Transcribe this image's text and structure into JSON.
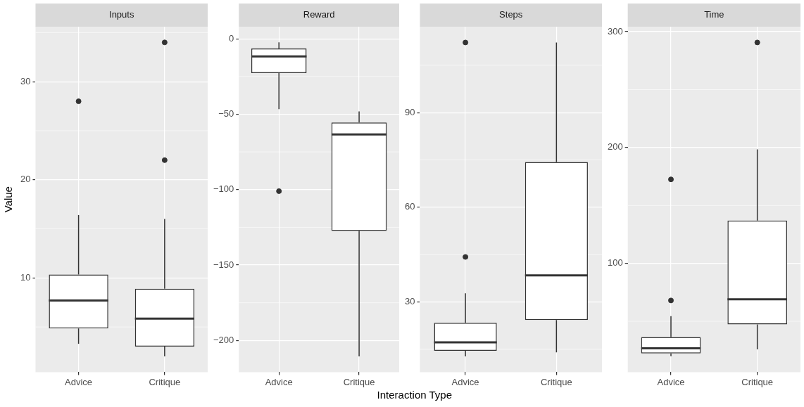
{
  "chart_data": [
    {
      "type": "box",
      "title": "Inputs",
      "ylabel": "Value",
      "categories": [
        "Advice",
        "Critique"
      ],
      "boxes": [
        {
          "low": 3.3,
          "q1": 4.85,
          "median": 7.7,
          "q3": 10.35,
          "high": 16.4,
          "outliers": [
            28
          ]
        },
        {
          "low": 2.0,
          "q1": 3.0,
          "median": 5.85,
          "q3": 8.9,
          "high": 16,
          "outliers": [
            34,
            22
          ]
        }
      ],
      "ylim": [
        0.4,
        35.6
      ],
      "yticks": [
        10,
        20,
        30
      ],
      "grid": true,
      "legend": false
    },
    {
      "type": "box",
      "title": "Reward",
      "xlabel": "Interaction Type",
      "categories": [
        "Advice",
        "Critique"
      ],
      "boxes": [
        {
          "low": -46.6,
          "q1": -22.7,
          "median": -11.7,
          "q3": -6.5,
          "high": -2.4,
          "outliers": [
            -101
          ]
        },
        {
          "low": -210.6,
          "q1": -127.4,
          "median": -63.4,
          "q3": -55.5,
          "high": -48.2
        }
      ],
      "ylim": [
        -221,
        8
      ],
      "yticks": [
        -200,
        -150,
        -100,
        -50,
        0
      ],
      "grid": true,
      "legend": false
    },
    {
      "type": "box",
      "title": "Steps",
      "categories": [
        "Advice",
        "Critique"
      ],
      "boxes": [
        {
          "low": 12.75,
          "q1": 14.5,
          "median": 17.2,
          "q3": 23.4,
          "high": 32.75,
          "outliers": [
            112.2,
            44.25
          ]
        },
        {
          "low": 14,
          "q1": 24.25,
          "median": 38.4,
          "q3": 74.3,
          "high": 112.2
        }
      ],
      "ylim": [
        7.75,
        117.2
      ],
      "yticks": [
        30,
        60,
        90
      ],
      "grid": true,
      "legend": false
    },
    {
      "type": "box",
      "title": "Time",
      "categories": [
        "Advice",
        "Critique"
      ],
      "boxes": [
        {
          "low": 19.8,
          "q1": 22.3,
          "median": 26.6,
          "q3": 36.4,
          "high": 54.5,
          "outliers": [
            172.5,
            68
          ]
        },
        {
          "low": 25.7,
          "q1": 47.3,
          "median": 69,
          "q3": 137,
          "high": 198.4,
          "outliers": [
            290.7
          ]
        }
      ],
      "ylim": [
        6.1,
        304.3
      ],
      "yticks": [
        100,
        200,
        300
      ],
      "grid": true,
      "legend": false
    }
  ]
}
